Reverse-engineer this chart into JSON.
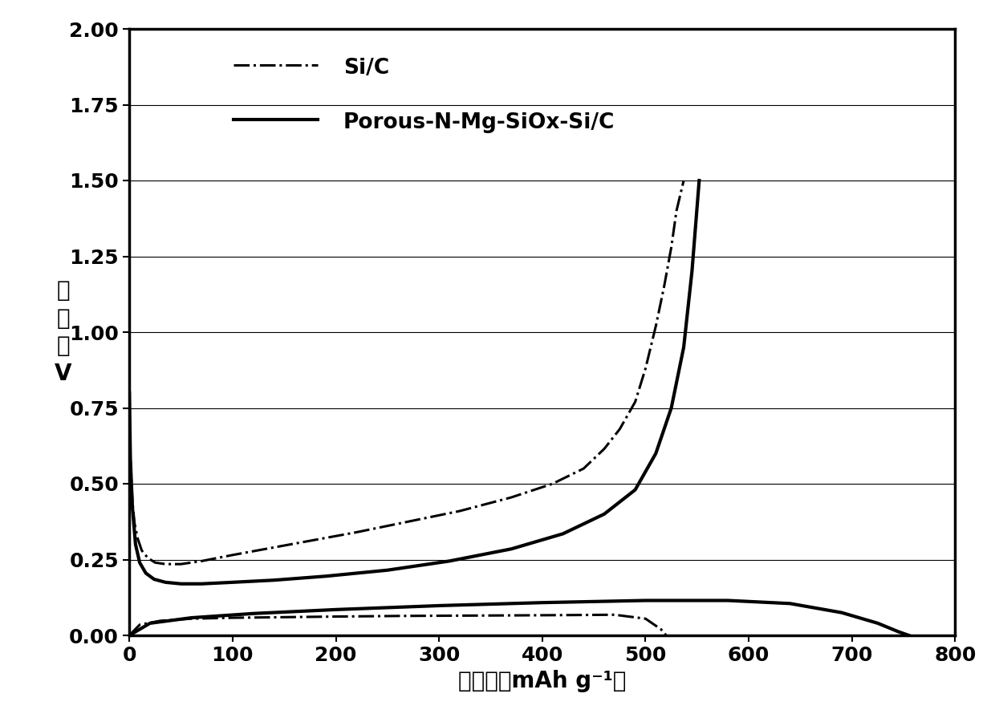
{
  "xlabel": "容量／（mAh g⁻¹）",
  "ylabel_lines": [
    "电",
    "压",
    "／",
    "V"
  ],
  "xlim": [
    0,
    800
  ],
  "ylim": [
    0,
    2.0
  ],
  "xticks": [
    0,
    100,
    200,
    300,
    400,
    500,
    600,
    700,
    800
  ],
  "yticks": [
    0,
    0.25,
    0.5,
    0.75,
    1.0,
    1.25,
    1.5,
    1.75,
    2.0
  ],
  "legend_labels": [
    "Si/C",
    "Porous-N-Mg-SiOx-Si/C"
  ],
  "background_color": "#ffffff",
  "line_color": "#000000",
  "sic_discharge_x": [
    0,
    1,
    3,
    5,
    8,
    12,
    18,
    25,
    35,
    50,
    70,
    100,
    140,
    180,
    220,
    270,
    320,
    370,
    410,
    440,
    460,
    475,
    490,
    500,
    510,
    518,
    525,
    530,
    537
  ],
  "sic_discharge_y": [
    0.75,
    0.58,
    0.44,
    0.37,
    0.32,
    0.28,
    0.255,
    0.24,
    0.235,
    0.235,
    0.245,
    0.265,
    0.29,
    0.315,
    0.34,
    0.375,
    0.41,
    0.455,
    0.5,
    0.55,
    0.615,
    0.68,
    0.77,
    0.88,
    1.02,
    1.15,
    1.28,
    1.4,
    1.5
  ],
  "sic_charge_x": [
    0,
    10,
    30,
    60,
    100,
    150,
    200,
    260,
    320,
    380,
    430,
    470,
    500,
    515,
    520
  ],
  "sic_charge_y": [
    0.0,
    0.035,
    0.048,
    0.055,
    0.058,
    0.06,
    0.062,
    0.064,
    0.065,
    0.066,
    0.067,
    0.068,
    0.055,
    0.02,
    0.0
  ],
  "porous_discharge_x": [
    0,
    1,
    3,
    6,
    10,
    16,
    24,
    35,
    50,
    70,
    100,
    140,
    190,
    250,
    310,
    370,
    420,
    460,
    490,
    510,
    525,
    537,
    545,
    552
  ],
  "porous_discharge_y": [
    0.8,
    0.58,
    0.42,
    0.3,
    0.24,
    0.205,
    0.185,
    0.175,
    0.17,
    0.17,
    0.175,
    0.182,
    0.195,
    0.215,
    0.245,
    0.285,
    0.335,
    0.4,
    0.48,
    0.6,
    0.75,
    0.95,
    1.2,
    1.5
  ],
  "porous_charge_x": [
    0,
    20,
    60,
    120,
    200,
    300,
    400,
    500,
    580,
    640,
    690,
    725,
    745,
    755
  ],
  "porous_charge_y": [
    0.0,
    0.04,
    0.058,
    0.072,
    0.085,
    0.098,
    0.108,
    0.115,
    0.115,
    0.105,
    0.075,
    0.04,
    0.012,
    0.0
  ]
}
